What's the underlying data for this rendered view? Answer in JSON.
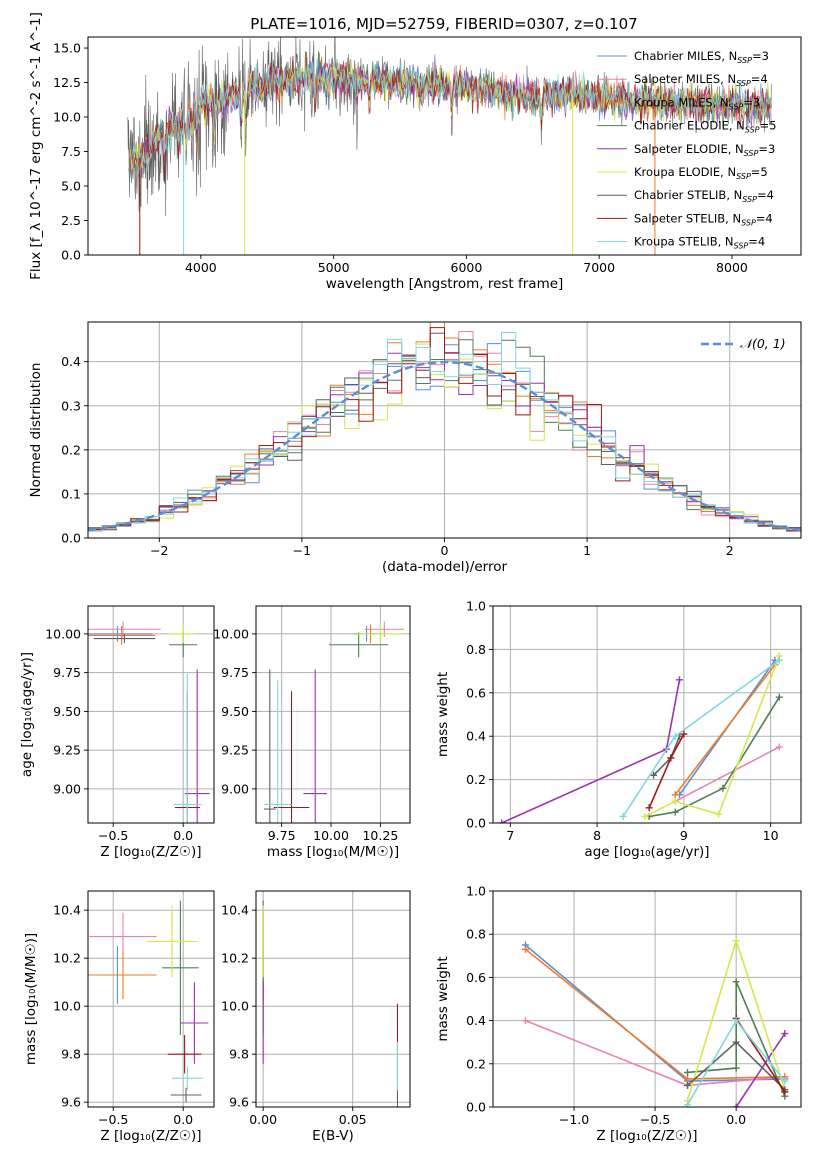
{
  "title": "PLATE=1016, MJD=52759, FIBERID=0307, z=0.107",
  "colors": {
    "chabrier_miles": "#5b8fd6",
    "salpeter_miles": "#e882b4",
    "kroupa_miles": "#ee7d2a",
    "chabrier_elodie": "#4f7f55",
    "salpeter_elodie": "#9a35b0",
    "kroupa_elodie": "#d6e84a",
    "chabrier_stelib": "#606060",
    "salpeter_stelib": "#a01818",
    "kroupa_stelib": "#7fd8de",
    "normal": "#5b8fd6",
    "grid": "#b0b0b0"
  },
  "legend_entries": [
    {
      "pre": "Chabrier MILES, N",
      "sub": "SSP",
      "post": "=3",
      "key": "chabrier_miles"
    },
    {
      "pre": "Salpeter MILES, N",
      "sub": "SSP",
      "post": "=4",
      "key": "salpeter_miles"
    },
    {
      "pre": "Kroupa MILES, N",
      "sub": "SSP",
      "post": "=3",
      "key": "kroupa_miles"
    },
    {
      "pre": "Chabrier ELODIE, N",
      "sub": "SSP",
      "post": "=5",
      "key": "chabrier_elodie"
    },
    {
      "pre": "Salpeter ELODIE, N",
      "sub": "SSP",
      "post": "=3",
      "key": "salpeter_elodie"
    },
    {
      "pre": "Kroupa ELODIE, N",
      "sub": "SSP",
      "post": "=5",
      "key": "kroupa_elodie"
    },
    {
      "pre": "Chabrier STELIB, N",
      "sub": "SSP",
      "post": "=4",
      "key": "chabrier_stelib"
    },
    {
      "pre": "Salpeter STELIB, N",
      "sub": "SSP",
      "post": "=4",
      "key": "salpeter_stelib"
    },
    {
      "pre": "Kroupa STELIB, N",
      "sub": "SSP",
      "post": "=4",
      "key": "kroupa_stelib"
    }
  ],
  "chart_data": [
    {
      "id": "spectrum",
      "type": "line",
      "xlabel": "wavelength [Angstrom, rest frame]",
      "ylabel": "Flux [f_λ 10^-17 erg cm^-2 s^-1 A^-1]",
      "xlim": [
        3150,
        8520
      ],
      "ylim": [
        0,
        15.8
      ],
      "xticks": [
        4000,
        5000,
        6000,
        7000,
        8000
      ],
      "yticks": [
        0.0,
        2.5,
        5.0,
        7.5,
        10.0,
        12.5,
        15.0
      ],
      "wavelength_range": [
        3450,
        8300
      ],
      "continuum_points": [
        [
          3450,
          6.8
        ],
        [
          3600,
          7.2
        ],
        [
          3700,
          8.6
        ],
        [
          3850,
          9.6
        ],
        [
          3950,
          10.6
        ],
        [
          4100,
          11.0
        ],
        [
          4300,
          11.8
        ],
        [
          4500,
          12.4
        ],
        [
          4800,
          12.9
        ],
        [
          5200,
          12.8
        ],
        [
          5600,
          12.4
        ],
        [
          6000,
          12.2
        ],
        [
          6400,
          11.6
        ],
        [
          6800,
          11.6
        ],
        [
          7200,
          11.2
        ],
        [
          7600,
          11.0
        ],
        [
          8000,
          10.9
        ],
        [
          8300,
          10.8
        ]
      ]
    },
    {
      "id": "residuals",
      "type": "line",
      "xlabel": "(data-model)/error",
      "ylabel": "Normed distribution",
      "xlim": [
        -2.5,
        2.5
      ],
      "ylim": [
        0,
        0.49
      ],
      "xticks": [
        -2,
        -1,
        0,
        1,
        2
      ],
      "yticks": [
        0.0,
        0.1,
        0.2,
        0.3,
        0.4
      ],
      "series_label": "𝒩(0, 1)",
      "bin_width": 0.1
    },
    {
      "id": "age_vs_Z",
      "type": "scatter",
      "xlabel": "Z [log₁₀(Z/Z☉)]",
      "ylabel": "age  [log₁₀(age/yr)]",
      "xlim": [
        -0.68,
        0.22
      ],
      "ylim": [
        8.78,
        10.18
      ],
      "xticks": [
        -0.5,
        0.0
      ],
      "yticks": [
        9.0,
        9.25,
        9.5,
        9.75,
        10.0
      ],
      "points": [
        {
          "key": "chabrier_miles",
          "x": -0.47,
          "y": 10.0,
          "xerr": 0.25,
          "yerr": 0.05
        },
        {
          "key": "salpeter_miles",
          "x": -0.43,
          "y": 10.03,
          "xerr": 0.27,
          "yerr": 0.05
        },
        {
          "key": "kroupa_miles",
          "x": -0.44,
          "y": 9.99,
          "xerr": 0.24,
          "yerr": 0.06
        },
        {
          "key": "chabrier_elodie",
          "x": 0.0,
          "y": 9.93,
          "xerr": 0.1,
          "yerr": 0.08
        },
        {
          "key": "salpeter_elodie",
          "x": 0.1,
          "y": 8.97,
          "xerr": 0.09,
          "yerr": 0.8
        },
        {
          "key": "kroupa_elodie",
          "x": 0.0,
          "y": 10.0,
          "xerr": 0.1,
          "yerr": 0.06
        },
        {
          "key": "chabrier_stelib",
          "x": -0.42,
          "y": 9.97,
          "xerr": 0.22,
          "yerr": 0.03
        },
        {
          "key": "salpeter_stelib",
          "x": 0.03,
          "y": 8.88,
          "xerr": 0.09,
          "yerr": 0.75
        },
        {
          "key": "kroupa_stelib",
          "x": 0.03,
          "y": 8.9,
          "xerr": 0.1,
          "yerr": 0.85
        }
      ]
    },
    {
      "id": "age_vs_mass",
      "type": "scatter",
      "xlabel": "mass [log₁₀(M/M☉)]",
      "ylabel": "",
      "xlim": [
        9.62,
        10.4
      ],
      "ylim": [
        8.78,
        10.18
      ],
      "xticks": [
        9.75,
        10.0,
        10.25
      ],
      "yticks": [
        9.0,
        9.25,
        9.5,
        9.75,
        10.0
      ],
      "points": [
        {
          "key": "chabrier_miles",
          "x": 10.18,
          "y": 10.0,
          "xerr": 0.06,
          "yerr": 0.05
        },
        {
          "key": "salpeter_miles",
          "x": 10.27,
          "y": 10.03,
          "xerr": 0.1,
          "yerr": 0.05
        },
        {
          "key": "kroupa_miles",
          "x": 10.2,
          "y": 10.0,
          "xerr": 0.07,
          "yerr": 0.06
        },
        {
          "key": "chabrier_elodie",
          "x": 10.14,
          "y": 9.93,
          "xerr": 0.15,
          "yerr": 0.08
        },
        {
          "key": "salpeter_elodie",
          "x": 9.92,
          "y": 8.97,
          "xerr": 0.06,
          "yerr": 0.8
        },
        {
          "key": "kroupa_elodie",
          "x": 10.25,
          "y": 10.0,
          "xerr": 0.12,
          "yerr": 0.06
        },
        {
          "key": "chabrier_stelib",
          "x": 9.69,
          "y": 8.87,
          "xerr": 0.03,
          "yerr": 0.9
        },
        {
          "key": "salpeter_stelib",
          "x": 9.8,
          "y": 8.88,
          "xerr": 0.09,
          "yerr": 0.75
        },
        {
          "key": "kroupa_stelib",
          "x": 9.73,
          "y": 8.9,
          "xerr": 0.07,
          "yerr": 0.8
        }
      ]
    },
    {
      "id": "weight_vs_age",
      "type": "line",
      "xlabel": "age  [log₁₀(age/yr)]",
      "ylabel": "mass weight",
      "xlim": [
        6.8,
        10.35
      ],
      "ylim": [
        0,
        1.0
      ],
      "xticks": [
        7,
        8,
        9,
        10
      ],
      "yticks": [
        0.0,
        0.2,
        0.4,
        0.6,
        0.8,
        1.0
      ],
      "series": [
        {
          "key": "chabrier_miles",
          "x": [
            8.95,
            10.05
          ],
          "y": [
            0.13,
            0.75
          ]
        },
        {
          "key": "salpeter_miles",
          "x": [
            8.9,
            10.1
          ],
          "y": [
            0.1,
            0.35
          ]
        },
        {
          "key": "kroupa_miles",
          "x": [
            8.9,
            10.05
          ],
          "y": [
            0.13,
            0.73
          ]
        },
        {
          "key": "chabrier_elodie",
          "x": [
            8.6,
            8.9,
            9.45,
            10.1
          ],
          "y": [
            0.03,
            0.05,
            0.16,
            0.58
          ]
        },
        {
          "key": "salpeter_elodie",
          "x": [
            6.9,
            8.8,
            8.95
          ],
          "y": [
            0.0,
            0.34,
            0.66
          ]
        },
        {
          "key": "kroupa_elodie",
          "x": [
            8.55,
            8.9,
            9.4,
            10.1
          ],
          "y": [
            0.03,
            0.1,
            0.04,
            0.77
          ]
        },
        {
          "key": "chabrier_stelib",
          "x": [
            8.65,
            8.85,
            8.95
          ],
          "y": [
            0.22,
            0.3,
            0.4
          ]
        },
        {
          "key": "salpeter_stelib",
          "x": [
            8.6,
            8.85,
            9.0
          ],
          "y": [
            0.07,
            0.3,
            0.41
          ]
        },
        {
          "key": "kroupa_stelib",
          "x": [
            8.3,
            8.9,
            10.1
          ],
          "y": [
            0.03,
            0.4,
            0.75
          ]
        }
      ]
    },
    {
      "id": "mass_vs_Z",
      "type": "scatter",
      "xlabel": "Z [log₁₀(Z/Z☉)]",
      "ylabel": "mass [log₁₀(M/M☉)]",
      "xlim": [
        -0.68,
        0.22
      ],
      "ylim": [
        9.58,
        10.48
      ],
      "xticks": [
        -0.5,
        0.0
      ],
      "yticks": [
        9.6,
        9.8,
        10.0,
        10.2,
        10.4
      ],
      "points": [
        {
          "key": "chabrier_miles",
          "x": -0.47,
          "y": 10.13,
          "xerr": 0.25,
          "yerr": 0.12
        },
        {
          "key": "salpeter_miles",
          "x": -0.43,
          "y": 10.29,
          "xerr": 0.24,
          "yerr": 0.1
        },
        {
          "key": "kroupa_miles",
          "x": -0.43,
          "y": 10.13,
          "xerr": 0.24,
          "yerr": 0.1
        },
        {
          "key": "chabrier_elodie",
          "x": -0.02,
          "y": 10.16,
          "xerr": 0.13,
          "yerr": 0.28
        },
        {
          "key": "salpeter_elodie",
          "x": 0.08,
          "y": 9.93,
          "xerr": 0.1,
          "yerr": 0.17
        },
        {
          "key": "kroupa_elodie",
          "x": -0.08,
          "y": 10.27,
          "xerr": 0.18,
          "yerr": 0.15
        },
        {
          "key": "chabrier_stelib",
          "x": 0.02,
          "y": 9.63,
          "xerr": 0.11,
          "yerr": 0.03
        },
        {
          "key": "salpeter_stelib",
          "x": 0.01,
          "y": 9.8,
          "xerr": 0.12,
          "yerr": 0.08
        },
        {
          "key": "kroupa_stelib",
          "x": 0.03,
          "y": 9.7,
          "xerr": 0.11,
          "yerr": 0.05
        }
      ]
    },
    {
      "id": "mass_vs_EBV",
      "type": "scatter",
      "xlabel": "E(B-V)",
      "ylabel": "",
      "xlim": [
        -0.004,
        0.082
      ],
      "ylim": [
        9.58,
        10.48
      ],
      "xticks": [
        0.0,
        0.05
      ],
      "yticks": [
        9.6,
        9.8,
        10.0,
        10.2,
        10.4
      ],
      "points": [
        {
          "key": "chabrier_miles",
          "x": 0.0,
          "y": 10.13,
          "yerr": 0.12
        },
        {
          "key": "salpeter_miles",
          "x": 0.0,
          "y": 10.29,
          "yerr": 0.1
        },
        {
          "key": "kroupa_miles",
          "x": 0.0,
          "y": 10.13,
          "yerr": 0.1
        },
        {
          "key": "chabrier_elodie",
          "x": 0.0,
          "y": 10.16,
          "yerr": 0.28
        },
        {
          "key": "salpeter_elodie",
          "x": 0.0,
          "y": 9.93,
          "yerr": 0.17
        },
        {
          "key": "kroupa_elodie",
          "x": 0.0,
          "y": 10.27,
          "yerr": 0.15
        },
        {
          "key": "chabrier_stelib",
          "x": 0.075,
          "y": 9.63,
          "yerr": 0.06
        },
        {
          "key": "salpeter_stelib",
          "x": 0.075,
          "y": 9.85,
          "yerr": 0.16
        },
        {
          "key": "kroupa_stelib",
          "x": 0.075,
          "y": 9.75,
          "yerr": 0.1
        }
      ]
    },
    {
      "id": "weight_vs_Z",
      "type": "line",
      "xlabel": "Z [log₁₀(Z/Z☉)]",
      "ylabel": "mass weight",
      "xlim": [
        -1.5,
        0.4
      ],
      "ylim": [
        0,
        1.0
      ],
      "xticks": [
        -1.0,
        -0.5,
        0.0
      ],
      "yticks": [
        0.0,
        0.2,
        0.4,
        0.6,
        0.8,
        1.0
      ],
      "series": [
        {
          "key": "chabrier_miles",
          "x": [
            -1.3,
            -0.3,
            0.3
          ],
          "y": [
            0.75,
            0.12,
            0.13
          ]
        },
        {
          "key": "salpeter_miles",
          "x": [
            -1.3,
            -0.3,
            0.3
          ],
          "y": [
            0.4,
            0.1,
            0.14
          ]
        },
        {
          "key": "kroupa_miles",
          "x": [
            -1.3,
            -0.3,
            0.3
          ],
          "y": [
            0.73,
            0.13,
            0.14
          ]
        },
        {
          "key": "chabrier_elodie",
          "x": [
            -0.3,
            0.0,
            0.0,
            0.3
          ],
          "y": [
            0.16,
            0.18,
            0.58,
            0.05
          ]
        },
        {
          "key": "salpeter_elodie",
          "x": [
            0.0,
            0.3
          ],
          "y": [
            0.0,
            0.34
          ]
        },
        {
          "key": "kroupa_elodie",
          "x": [
            -0.3,
            0.0,
            0.3
          ],
          "y": [
            0.03,
            0.77,
            0.08
          ]
        },
        {
          "key": "chabrier_stelib",
          "x": [
            -0.3,
            0.0,
            0.3
          ],
          "y": [
            0.1,
            0.3,
            0.08
          ]
        },
        {
          "key": "salpeter_stelib",
          "x": [
            0.0,
            0.3
          ],
          "y": [
            0.41,
            0.07
          ]
        },
        {
          "key": "kroupa_stelib",
          "x": [
            -0.3,
            0.0,
            0.3
          ],
          "y": [
            0.01,
            0.4,
            0.12
          ]
        }
      ]
    }
  ]
}
